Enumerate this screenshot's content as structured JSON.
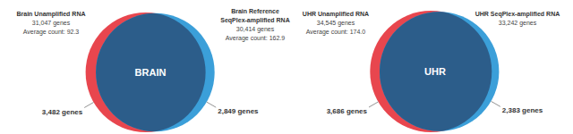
{
  "chart_data": [
    {
      "type": "venn",
      "sets": [
        {
          "label": [
            "Brain Unamplified RNA"
          ],
          "size": 31047,
          "size_label": "31,047 genes",
          "average_count": 92.3,
          "average_label": "Average count: 92.3",
          "unique": 3482,
          "unique_label": "3,482 genes",
          "color": "#e8464e"
        },
        {
          "label": [
            "Brain Reference",
            "SeqPlex-amplified RNA"
          ],
          "size": 30414,
          "size_label": "30,414 genes",
          "average_count": 162.9,
          "average_label": "Average count: 162.9",
          "unique": 2849,
          "unique_label": "2,849 genes",
          "color": "#3b9fd9"
        }
      ],
      "intersection": {
        "label": "BRAIN",
        "color": "#2c5d8a"
      }
    },
    {
      "type": "venn",
      "sets": [
        {
          "label": [
            "UHR Unamplified RNA"
          ],
          "size": 34545,
          "size_label": "34,545 genes",
          "average_count": 174.0,
          "average_label": "Average count: 174.0",
          "unique": 3686,
          "unique_label": "3,686 genes",
          "color": "#e8464e"
        },
        {
          "label": [
            "UHR SeqPlex-amplified RNA"
          ],
          "size": 33242,
          "size_label": "33,242 genes",
          "unique": 2383,
          "unique_label": "2,383 genes",
          "color": "#3b9fd9"
        }
      ],
      "intersection": {
        "label": "UHR",
        "color": "#2c5d8a"
      }
    }
  ]
}
